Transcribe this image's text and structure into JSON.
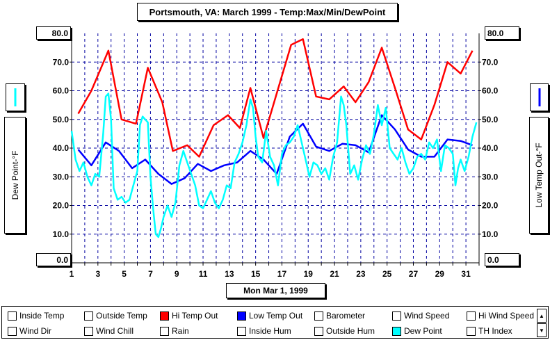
{
  "window_title": "Portsmouth, VA: March 1999 - Temp:Max/Min/DewPoint",
  "date_readout": "Mon Mar 1, 1999",
  "left_axis": {
    "label": "Dew Point-°F",
    "top_value": "80.0",
    "bottom_value": "0.0",
    "swatch_color": "#00ffff"
  },
  "right_axis": {
    "label": "Low Temp Out-°F",
    "top_value": "80.0",
    "bottom_value": "0.0",
    "swatch_color": "#0000ff"
  },
  "legend": [
    {
      "label": "Inside Temp",
      "color": ""
    },
    {
      "label": "Outside Temp",
      "color": ""
    },
    {
      "label": "Hi Temp Out",
      "color": "#ff0000"
    },
    {
      "label": "Low Temp Out",
      "color": "#0000ff"
    },
    {
      "label": "Barometer",
      "color": ""
    },
    {
      "label": "Wind Speed",
      "color": ""
    },
    {
      "label": "Hi Wind Speed",
      "color": ""
    },
    {
      "label": "Wind Dir",
      "color": ""
    },
    {
      "label": "Wind Chill",
      "color": ""
    },
    {
      "label": "Rain",
      "color": ""
    },
    {
      "label": "Inside Hum",
      "color": ""
    },
    {
      "label": "Outside Hum",
      "color": ""
    },
    {
      "label": "Dew Point",
      "color": "#00ffff"
    },
    {
      "label": "TH Index",
      "color": ""
    }
  ],
  "chart_data": {
    "type": "line",
    "ylim": [
      0,
      80
    ],
    "xlim": [
      1,
      32
    ],
    "y_ticks": [
      "10.0",
      "20.0",
      "30.0",
      "40.0",
      "50.0",
      "60.0",
      "70.0"
    ],
    "x_ticks": [
      "1",
      "3",
      "5",
      "7",
      "9",
      "11",
      "13",
      "15",
      "17",
      "19",
      "21",
      "23",
      "25",
      "27",
      "29",
      "31"
    ],
    "grid": true,
    "series": [
      {
        "name": "Hi Temp Out",
        "color": "#ff0000",
        "x": [
          1.5,
          2.5,
          3.8,
          4.8,
          5.9,
          6.8,
          7.9,
          8.7,
          9.8,
          10.7,
          11.8,
          12.9,
          13.8,
          14.6,
          15.6,
          16.6,
          17.7,
          18.6,
          19.6,
          20.6,
          21.7,
          22.6,
          23.6,
          24.6,
          25.6,
          26.6,
          27.6,
          28.6,
          29.6,
          30.6,
          31.5
        ],
        "y": [
          52,
          60,
          74,
          50,
          48.5,
          68,
          56,
          39,
          41,
          37,
          48,
          51.5,
          47,
          61,
          43.5,
          59,
          76,
          78,
          58,
          57,
          61.5,
          56,
          63,
          75,
          61,
          46.5,
          43,
          55,
          70,
          66,
          74
        ]
      },
      {
        "name": "Low Temp Out",
        "color": "#0000ff",
        "x": [
          1.5,
          2.5,
          3.6,
          4.6,
          5.6,
          6.6,
          7.6,
          8.6,
          9.6,
          10.6,
          11.6,
          12.6,
          13.6,
          14.6,
          15.6,
          16.6,
          17.6,
          18.6,
          19.6,
          20.6,
          21.6,
          22.6,
          23.6,
          24.6,
          25.6,
          26.6,
          27.6,
          28.6,
          29.6,
          30.6,
          31.5
        ],
        "y": [
          39.5,
          34,
          42,
          39,
          33,
          36,
          31,
          27.5,
          29.5,
          34.5,
          32,
          34,
          35,
          39,
          36,
          31,
          44,
          48.5,
          40.5,
          39,
          41.5,
          41,
          38.5,
          51.5,
          46.5,
          39.5,
          37,
          37,
          43,
          42.5,
          41
        ]
      },
      {
        "name": "Dew Point",
        "color": "#00ffff",
        "x": [
          1.0,
          1.3,
          1.6,
          1.9,
          2.2,
          2.5,
          2.8,
          3.1,
          3.4,
          3.6,
          3.8,
          4.0,
          4.2,
          4.5,
          4.8,
          5.1,
          5.4,
          5.7,
          6.0,
          6.2,
          6.4,
          6.6,
          6.8,
          7.0,
          7.2,
          7.4,
          7.6,
          7.8,
          8.0,
          8.3,
          8.6,
          8.9,
          9.2,
          9.5,
          9.8,
          10.1,
          10.4,
          10.7,
          11.0,
          11.3,
          11.6,
          11.9,
          12.2,
          12.5,
          12.8,
          13.1,
          13.4,
          13.7,
          14.0,
          14.3,
          14.6,
          14.8,
          15.0,
          15.2,
          15.5,
          15.8,
          16.1,
          16.4,
          16.7,
          17.0,
          17.3,
          17.6,
          17.9,
          18.2,
          18.5,
          18.8,
          19.1,
          19.4,
          19.7,
          20.0,
          20.3,
          20.6,
          20.9,
          21.2,
          21.5,
          21.7,
          21.9,
          22.2,
          22.5,
          22.8,
          23.1,
          23.4,
          23.7,
          24.0,
          24.3,
          24.6,
          24.9,
          25.2,
          25.5,
          25.8,
          26.1,
          26.4,
          26.7,
          27.0,
          27.3,
          27.6,
          27.9,
          28.2,
          28.5,
          28.8,
          29.1,
          29.4,
          29.7,
          30.0,
          30.2,
          30.4,
          30.6,
          30.9,
          31.2,
          31.5,
          31.8
        ],
        "y": [
          46,
          36,
          32,
          35,
          30,
          27,
          31,
          30,
          45,
          58,
          59,
          50,
          26,
          22,
          23,
          21,
          22,
          27,
          32,
          48,
          51,
          50,
          49,
          30,
          19,
          10,
          9,
          12,
          16,
          20,
          16,
          21,
          34,
          39,
          35,
          31,
          27,
          20,
          19,
          22,
          25,
          21,
          19,
          22,
          27,
          26,
          35,
          38,
          42,
          48,
          57,
          54,
          44,
          37,
          35,
          46,
          37,
          34,
          27,
          38,
          41,
          42,
          44,
          48,
          42,
          36,
          30,
          35,
          34,
          31,
          33,
          29,
          37,
          42,
          58,
          55,
          48,
          31,
          34,
          29,
          36,
          41,
          38,
          45,
          55,
          48,
          54,
          40,
          38,
          36,
          40,
          35,
          31,
          33,
          37,
          38,
          36,
          42,
          40,
          43,
          32,
          41,
          40,
          38,
          27,
          33,
          36,
          32,
          37,
          44,
          49
        ]
      }
    ]
  }
}
